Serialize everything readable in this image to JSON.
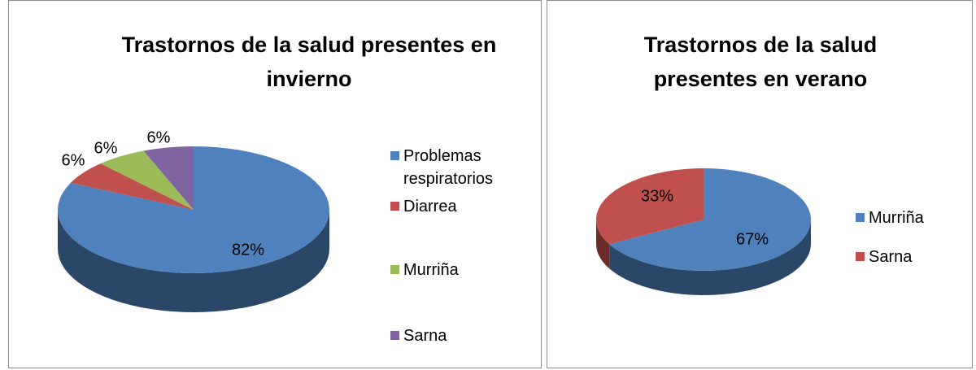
{
  "chart_data": [
    {
      "type": "pie",
      "title": "Trastornos de la salud presentes en invierno",
      "categories": [
        "Problemas respiratorios",
        "Diarrea",
        "Murriña",
        "Sarna"
      ],
      "values": [
        82,
        6,
        6,
        6
      ],
      "value_labels": [
        "82%",
        "6%",
        "6%",
        "6%"
      ],
      "colors": [
        "#4f81bd",
        "#c0504d",
        "#9bbb59",
        "#8064a2"
      ]
    },
    {
      "type": "pie",
      "title": "Trastornos de la salud presentes en verano",
      "categories": [
        "Murriña",
        "Sarna"
      ],
      "values": [
        67,
        33
      ],
      "value_labels": [
        "67%",
        "33%"
      ],
      "colors": [
        "#4f81bd",
        "#c0504d"
      ]
    }
  ]
}
